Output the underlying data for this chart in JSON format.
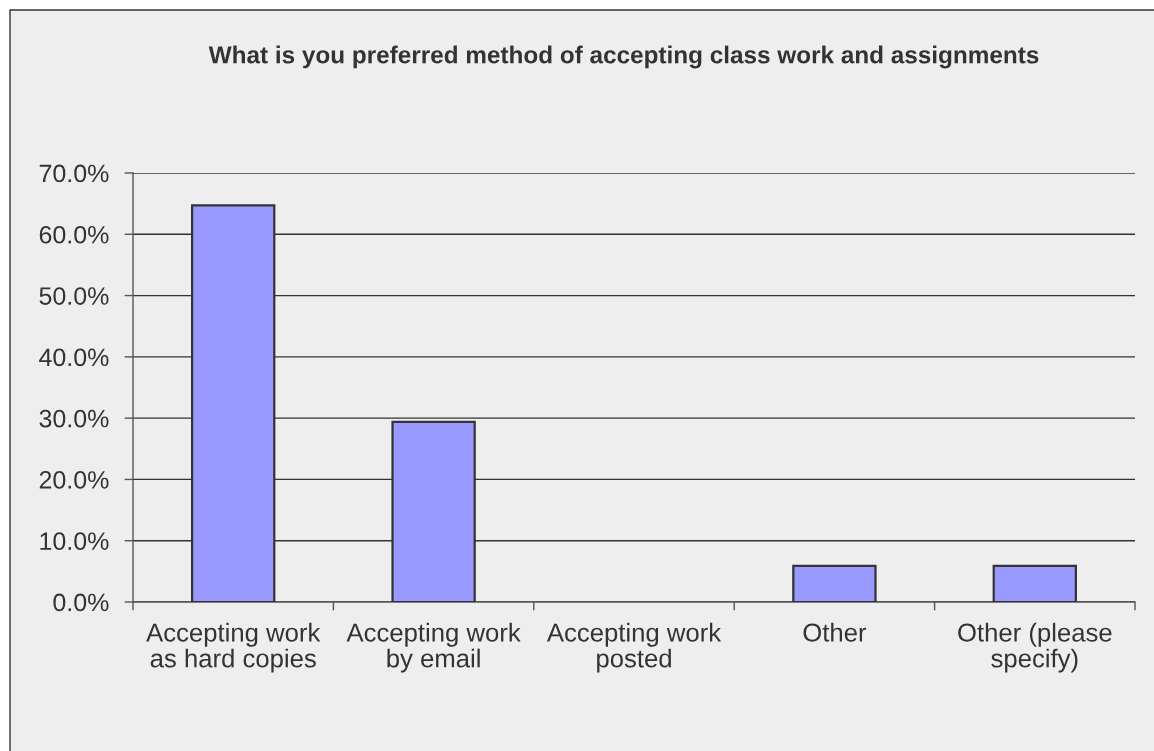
{
  "chart_data": {
    "type": "bar",
    "title": "What is you preferred method of accepting class work and assignments",
    "categories": [
      "Accepting work\nas hard copies",
      "Accepting work\nby email",
      "Accepting work\nposted",
      "Other",
      "Other (please\nspecify)"
    ],
    "values": [
      64.7,
      29.4,
      0,
      5.9,
      5.9
    ],
    "color": "#9999ff",
    "ylim": [
      0,
      70
    ],
    "yticks": [
      {
        "value": 0,
        "label": "0.0%"
      },
      {
        "value": 10,
        "label": "10.0%"
      },
      {
        "value": 20,
        "label": "20.0%"
      },
      {
        "value": 30,
        "label": "30.0%"
      },
      {
        "value": 40,
        "label": "40.0%"
      },
      {
        "value": 50,
        "label": "50.0%"
      },
      {
        "value": 60,
        "label": "60.0%"
      },
      {
        "value": 70,
        "label": "70.0%"
      }
    ],
    "grid": "y"
  }
}
